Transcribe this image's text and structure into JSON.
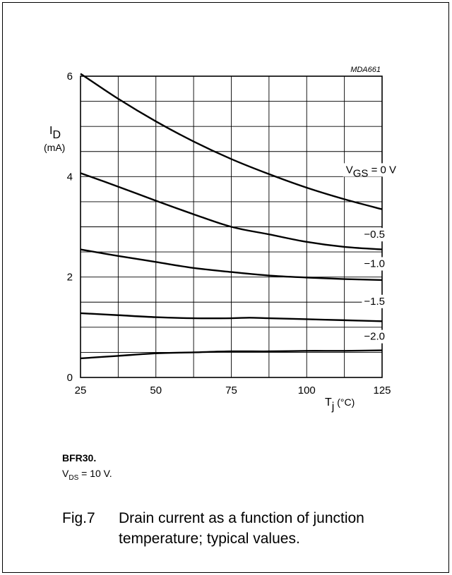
{
  "chart_data": {
    "type": "line",
    "code": "MDA661",
    "x_ticks": [
      "25",
      "50",
      "75",
      "100",
      "125"
    ],
    "y_ticks": [
      "0",
      "2",
      "4",
      "6"
    ],
    "xlim": [
      25,
      125
    ],
    "ylim": [
      0,
      6
    ],
    "grid": true,
    "y_label": {
      "symbol": "I",
      "sub": "D",
      "unit": "(mA)"
    },
    "x_label": {
      "symbol": "T",
      "sub": "j",
      "unit": "(°C)"
    },
    "series": [
      {
        "name": "0 V",
        "label": {
          "pre": "V",
          "sub": "GS",
          "post": " = 0 V"
        },
        "label_at": [
          113,
          4.07
        ],
        "points": [
          [
            25,
            6.05
          ],
          [
            37.5,
            5.55
          ],
          [
            50,
            5.1
          ],
          [
            62.5,
            4.7
          ],
          [
            75,
            4.35
          ],
          [
            87.5,
            4.05
          ],
          [
            100,
            3.78
          ],
          [
            112.5,
            3.55
          ],
          [
            125,
            3.35
          ]
        ]
      },
      {
        "name": "−0.5",
        "label": {
          "pre": "",
          "sub": "",
          "post": "−0.5"
        },
        "label_at": [
          119,
          2.78
        ],
        "points": [
          [
            25,
            4.07
          ],
          [
            37.5,
            3.8
          ],
          [
            50,
            3.52
          ],
          [
            62.5,
            3.25
          ],
          [
            75,
            3.0
          ],
          [
            87.5,
            2.85
          ],
          [
            100,
            2.7
          ],
          [
            112.5,
            2.6
          ],
          [
            125,
            2.55
          ]
        ]
      },
      {
        "name": "−1.0",
        "label": {
          "pre": "",
          "sub": "",
          "post": "−1.0"
        },
        "label_at": [
          119,
          2.2
        ],
        "points": [
          [
            25,
            2.55
          ],
          [
            37.5,
            2.42
          ],
          [
            50,
            2.3
          ],
          [
            62.5,
            2.18
          ],
          [
            75,
            2.1
          ],
          [
            87.5,
            2.03
          ],
          [
            100,
            1.99
          ],
          [
            112.5,
            1.96
          ],
          [
            125,
            1.94
          ]
        ]
      },
      {
        "name": "−1.5",
        "label": {
          "pre": "",
          "sub": "",
          "post": "−1.5"
        },
        "label_at": [
          119,
          1.45
        ],
        "points": [
          [
            25,
            1.28
          ],
          [
            37.5,
            1.24
          ],
          [
            50,
            1.2
          ],
          [
            62.5,
            1.18
          ],
          [
            75,
            1.18
          ],
          [
            81,
            1.19
          ],
          [
            87.5,
            1.18
          ],
          [
            100,
            1.16
          ],
          [
            112.5,
            1.14
          ],
          [
            125,
            1.12
          ]
        ]
      },
      {
        "name": "−2.0",
        "label": {
          "pre": "",
          "sub": "",
          "post": "−2.0"
        },
        "label_at": [
          119,
          0.75
        ],
        "points": [
          [
            25,
            0.38
          ],
          [
            37.5,
            0.43
          ],
          [
            50,
            0.48
          ],
          [
            62.5,
            0.5
          ],
          [
            75,
            0.52
          ],
          [
            87.5,
            0.52
          ],
          [
            100,
            0.53
          ],
          [
            112.5,
            0.53
          ],
          [
            125,
            0.54
          ]
        ]
      }
    ]
  },
  "caption": {
    "part": "BFR30.",
    "vds": {
      "pre": "V",
      "sub": "DS",
      "post": " = 10 V."
    },
    "fig_number": "Fig.7",
    "fig_text": "Drain current as a function of junction temperature; typical values."
  }
}
